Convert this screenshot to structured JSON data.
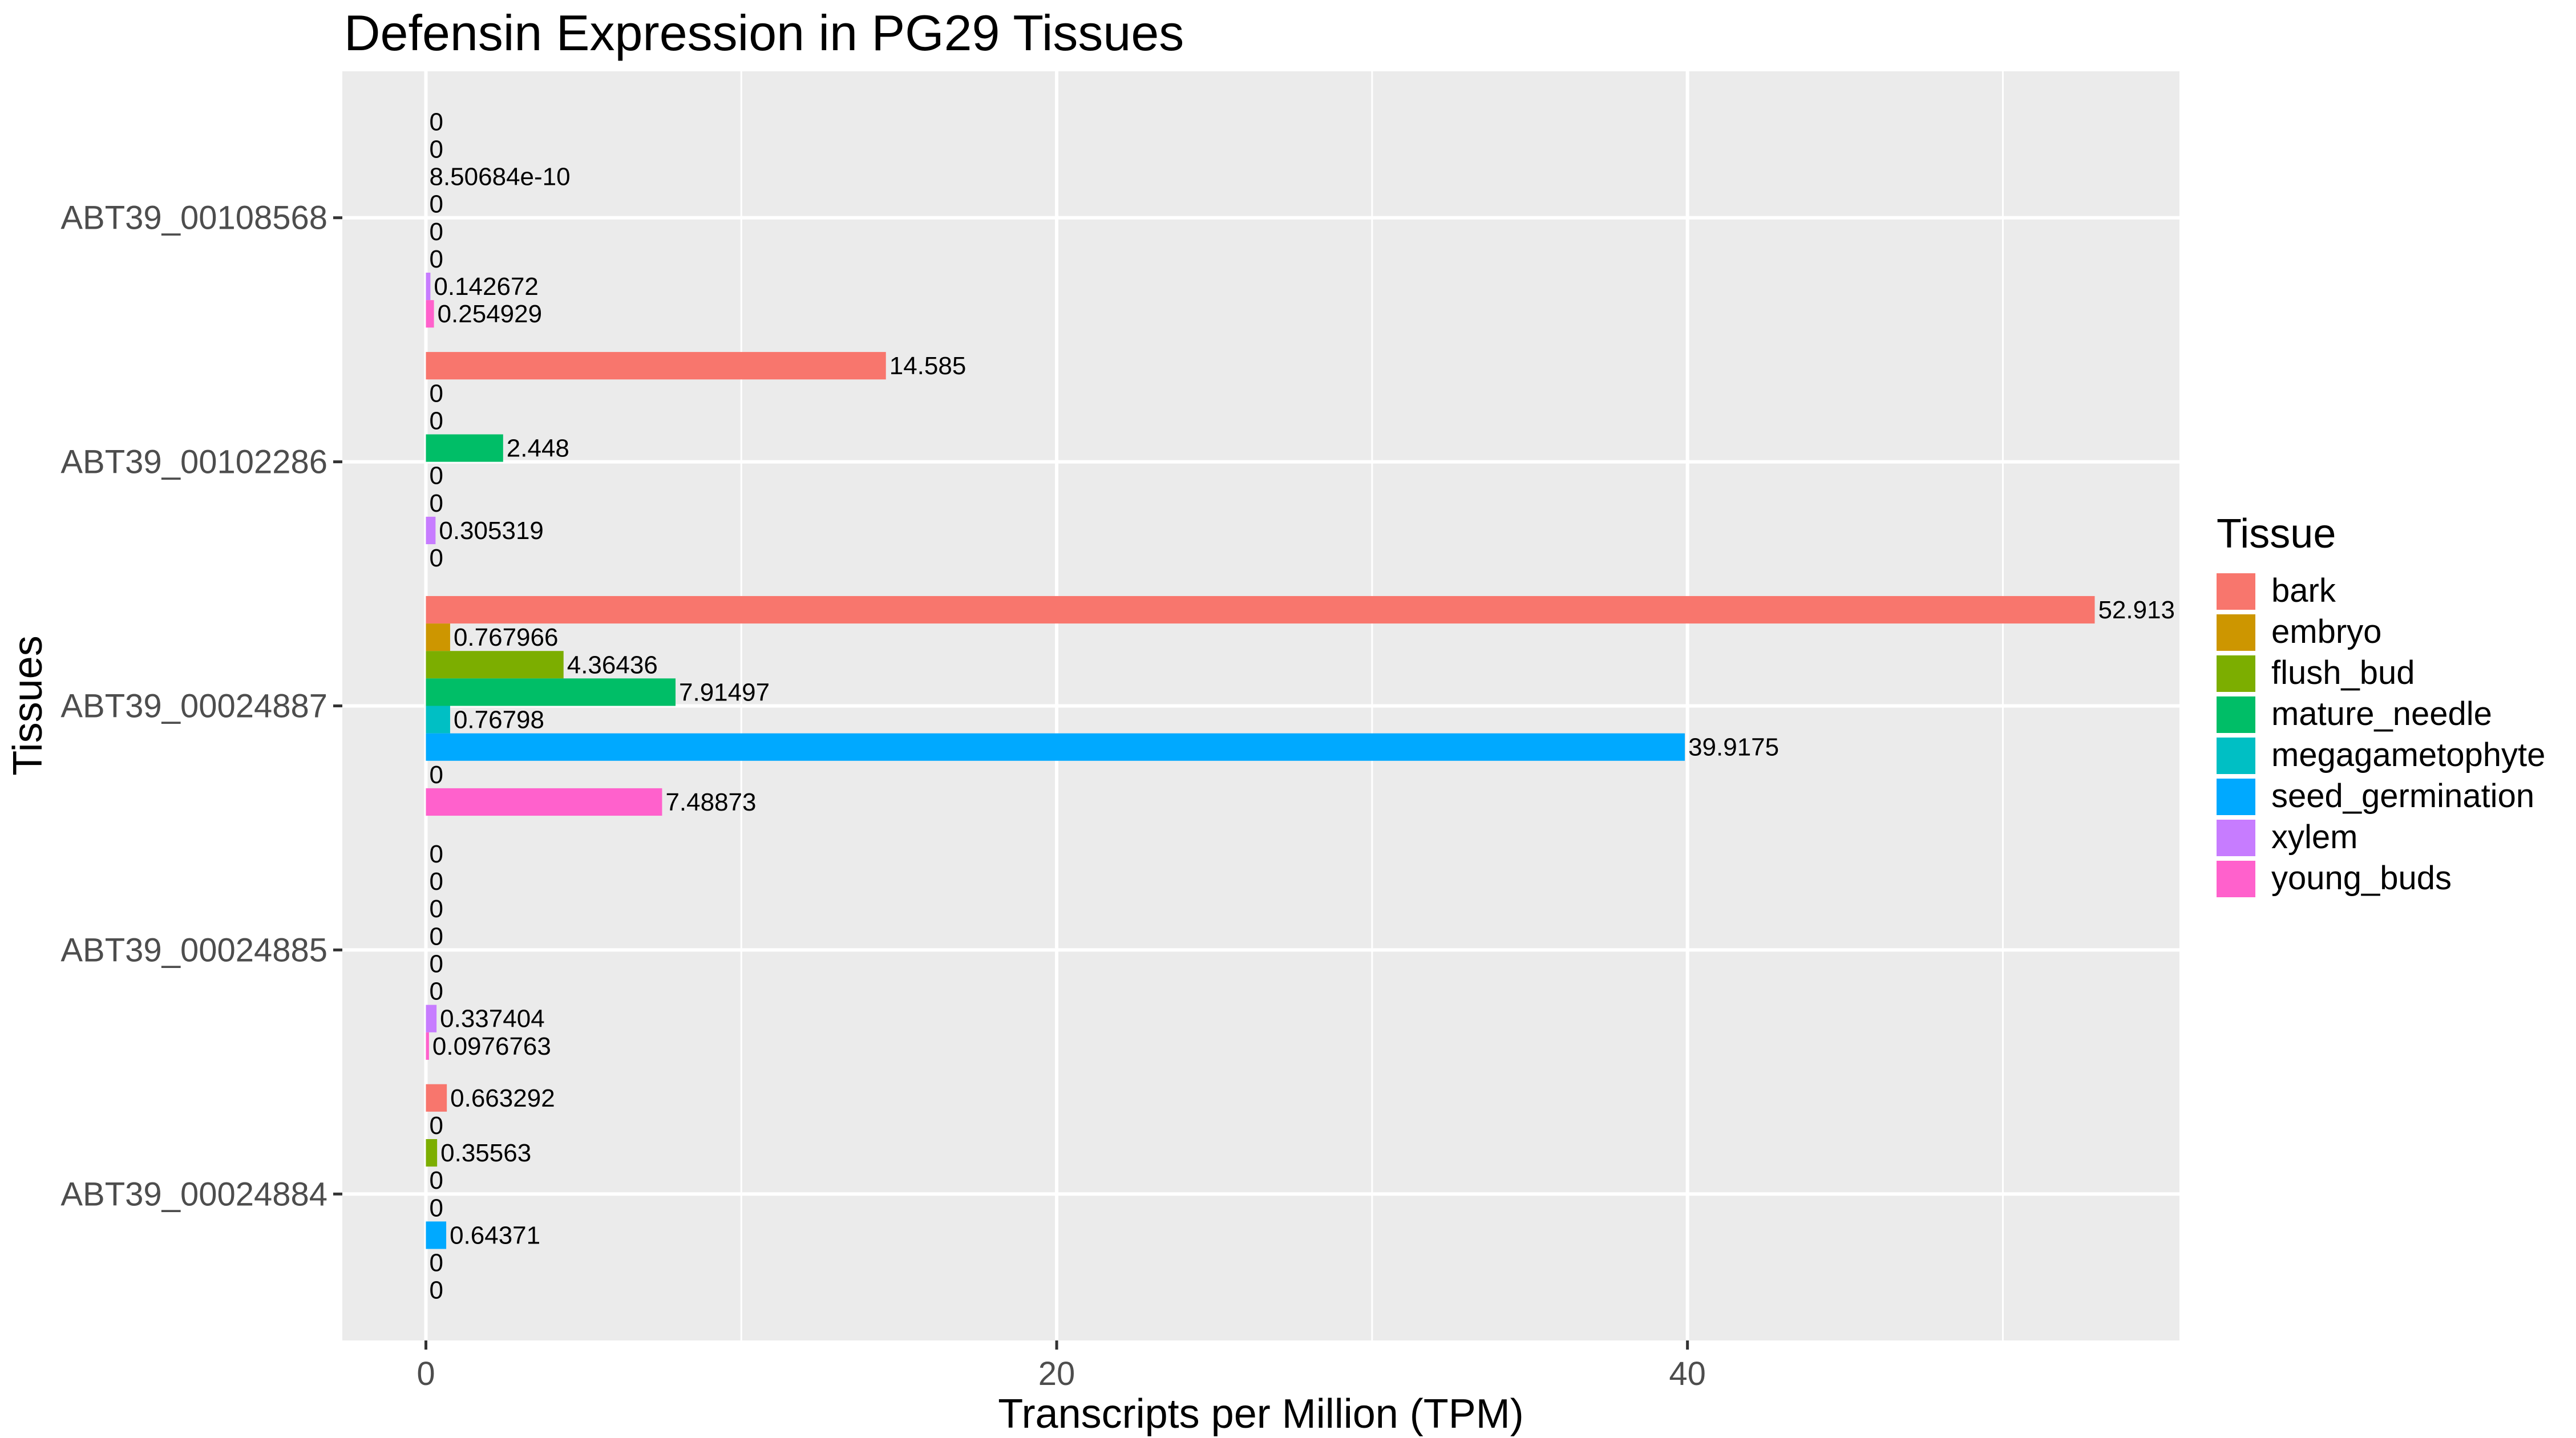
{
  "chart_data": {
    "type": "bar",
    "orientation": "horizontal",
    "title": "Defensin Expression in PG29 Tissues",
    "xlabel": "Transcripts per Million (TPM)",
    "ylabel": "Tissues",
    "xlim": [
      -2.65,
      55.6
    ],
    "xticks": [
      0,
      20,
      40
    ],
    "grid": true,
    "legend_title": "Tissue",
    "legend_position": "right",
    "categories": [
      "ABT39_00024884",
      "ABT39_00024885",
      "ABT39_00024887",
      "ABT39_00102286",
      "ABT39_00108568"
    ],
    "series": [
      {
        "name": "bark",
        "color": "#F8766D",
        "values": [
          0.663292,
          0,
          52.913,
          14.585,
          0
        ],
        "labels": [
          "0.663292",
          "0",
          "52.913",
          "14.585",
          "0"
        ]
      },
      {
        "name": "embryo",
        "color": "#CD9600",
        "values": [
          0,
          0,
          0.767966,
          0,
          0
        ],
        "labels": [
          "0",
          "0",
          "0.767966",
          "0",
          "0"
        ]
      },
      {
        "name": "flush_bud",
        "color": "#7CAE00",
        "values": [
          0.35563,
          0,
          4.36436,
          0,
          8.50684e-10
        ],
        "labels": [
          "0.35563",
          "0",
          "4.36436",
          "0",
          "8.50684e-10"
        ]
      },
      {
        "name": "mature_needle",
        "color": "#00BE67",
        "values": [
          0,
          0,
          7.91497,
          2.448,
          0
        ],
        "labels": [
          "0",
          "0",
          "7.91497",
          "2.448",
          "0"
        ]
      },
      {
        "name": "megagametophyte",
        "color": "#00BFC4",
        "values": [
          0,
          0,
          0.76798,
          0,
          0
        ],
        "labels": [
          "0",
          "0",
          "0.76798",
          "0",
          "0"
        ]
      },
      {
        "name": "seed_germination",
        "color": "#00A9FF",
        "values": [
          0.64371,
          0,
          39.9175,
          0,
          0
        ],
        "labels": [
          "0.64371",
          "0",
          "39.9175",
          "0",
          "0"
        ]
      },
      {
        "name": "xylem",
        "color": "#C77CFF",
        "values": [
          0,
          0.337404,
          0,
          0.305319,
          0.142672
        ],
        "labels": [
          "0",
          "0.337404",
          "0",
          "0.305319",
          "0.142672"
        ]
      },
      {
        "name": "young_buds",
        "color": "#FF61CC",
        "values": [
          0,
          0.0976763,
          7.48873,
          0,
          0.254929
        ],
        "labels": [
          "0",
          "0.0976763",
          "7.48873",
          "0",
          "0.254929"
        ]
      }
    ],
    "colors": {
      "panel": "#EBEBEB",
      "grid": "#FFFFFF",
      "tick": "#333333"
    }
  }
}
